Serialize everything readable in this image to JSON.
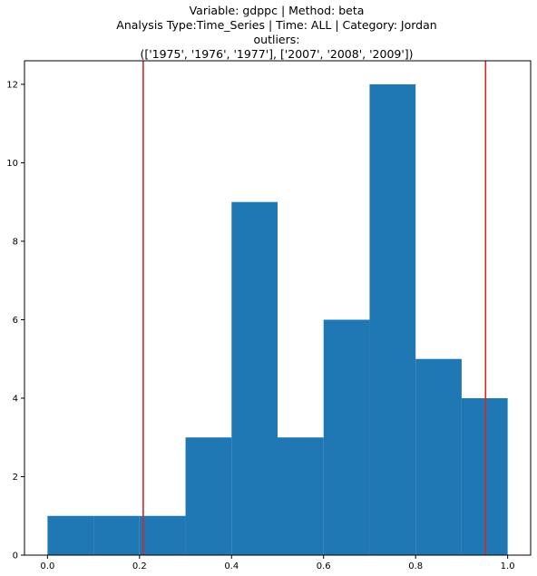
{
  "chart_data": {
    "type": "bar",
    "title_lines": [
      "Variable: gdppc | Method: beta",
      "Analysis Type:Time_Series | Time: ALL | Category: Jordan",
      "outliers:",
      "(['1975', '1976', '1977'], ['2007', '2008', '2009'])"
    ],
    "bins": [
      {
        "x0": 0.0,
        "x1": 0.1,
        "value": 1
      },
      {
        "x0": 0.1,
        "x1": 0.2,
        "value": 1
      },
      {
        "x0": 0.2,
        "x1": 0.3,
        "value": 1
      },
      {
        "x0": 0.3,
        "x1": 0.4,
        "value": 3
      },
      {
        "x0": 0.4,
        "x1": 0.5,
        "value": 9
      },
      {
        "x0": 0.5,
        "x1": 0.6,
        "value": 3
      },
      {
        "x0": 0.6,
        "x1": 0.7,
        "value": 6
      },
      {
        "x0": 0.7,
        "x1": 0.8,
        "value": 12
      },
      {
        "x0": 0.8,
        "x1": 0.9,
        "value": 5
      },
      {
        "x0": 0.9,
        "x1": 1.0,
        "value": 4
      }
    ],
    "outlier_lines": [
      0.208,
      0.952
    ],
    "xlim": [
      -0.05,
      1.05
    ],
    "ylim": [
      0,
      12.6
    ],
    "xticks": [
      0.0,
      0.2,
      0.4,
      0.6,
      0.8,
      1.0
    ],
    "xtick_labels": [
      "0.0",
      "0.2",
      "0.4",
      "0.6",
      "0.8",
      "1.0"
    ],
    "yticks": [
      0,
      2,
      4,
      6,
      8,
      10,
      12
    ],
    "ytick_labels": [
      "0",
      "2",
      "4",
      "6",
      "8",
      "10",
      "12"
    ],
    "bar_color": "#1f77b4",
    "line_color": "#d62728",
    "grid": false,
    "xlabel": "",
    "ylabel": ""
  }
}
